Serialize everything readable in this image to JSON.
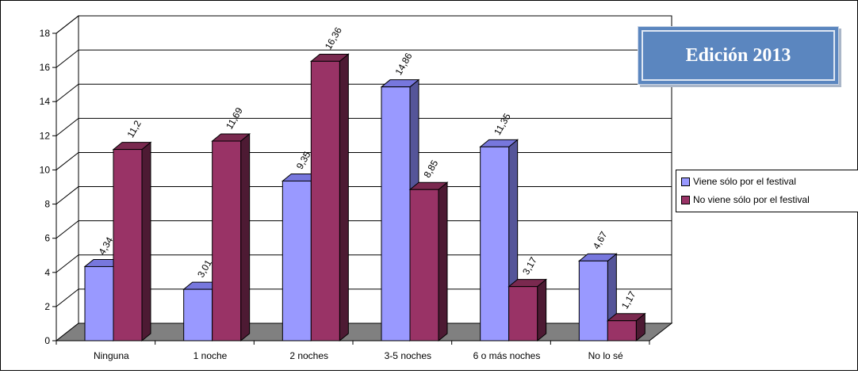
{
  "chart_data": {
    "type": "bar",
    "categories": [
      "Ninguna",
      "1 noche",
      "2 noches",
      "3-5 noches",
      "6 o más noches",
      "No lo sé"
    ],
    "series": [
      {
        "name": "Viene sólo por el festival",
        "values": [
          4.34,
          3.01,
          9.35,
          14.86,
          11.35,
          4.67
        ],
        "labels": [
          "4,34",
          "3,01",
          "9,35",
          "14,86",
          "11,35",
          "4,67"
        ],
        "color": "#9999ff"
      },
      {
        "name": "No viene sólo por el festival",
        "values": [
          11.2,
          11.69,
          16.36,
          8.85,
          3.17,
          1.17
        ],
        "labels": [
          "11,2",
          "11,69",
          "16,36",
          "8,85",
          "3,17",
          "1,17"
        ],
        "color": "#993366"
      }
    ],
    "ylim": [
      0,
      18
    ],
    "yticks": [
      0,
      2,
      4,
      6,
      8,
      10,
      12,
      14,
      16,
      18
    ],
    "grid": true,
    "legend_position": "right",
    "annotation": "Edición 2013"
  }
}
